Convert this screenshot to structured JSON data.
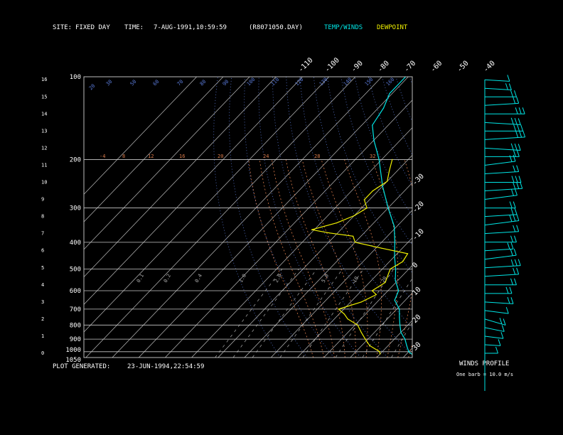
{
  "header": {
    "site_label": "SITE:",
    "site_value": "FIXED DAY",
    "time_label": "TIME:",
    "time_value": "7-AUG-1991,10:59:59",
    "file": "(R8071050.DAY)",
    "temp_legend": "TEMP/WINDS",
    "dewpoint_legend": "DEWPOINT"
  },
  "footer": {
    "generated_label": "PLOT GENERATED:",
    "generated_value": "23-JUN-1994,22:54:59"
  },
  "winds_panel": {
    "title": "WINDS PROFILE",
    "note": "One barb = 10.0 m/s"
  },
  "colors": {
    "temperature": "#00e5e5",
    "dewpoint": "#f0f000",
    "isobar": "#c8c8c8",
    "isotherm": "#bfbfbf",
    "dry_adiabat": "#5a7ad8",
    "moist_adiabat": "#d87a4a",
    "mixing_ratio": "#b0b0b0",
    "wind_barb": "#00e5e5"
  },
  "chart_data": {
    "type": "line",
    "title": "",
    "subtitle": "",
    "xlabel": "",
    "ylabel": "",
    "grid": true,
    "legend": "top-right",
    "pressure_ticks": [
      "100",
      "200",
      "300",
      "400",
      "500",
      "600",
      "700",
      "800",
      "900",
      "1000",
      "1050"
    ],
    "height_ticks": [
      "0",
      "1",
      "2",
      "3",
      "4",
      "5",
      "6",
      "7",
      "8",
      "9",
      "10",
      "11",
      "12",
      "13",
      "14",
      "15",
      "16"
    ],
    "isotherm_top_labels": [
      "-110",
      "-100",
      "-90",
      "-80",
      "-70",
      "-60",
      "-50",
      "-40"
    ],
    "isotherm_right_labels": [
      "-30",
      "-20",
      "-10",
      "0",
      "10",
      "20",
      "30"
    ],
    "dry_adiabat_labels": [
      "20",
      "30",
      "50",
      "60",
      "70",
      "80",
      "90",
      "100",
      "110",
      "120",
      "130",
      "140",
      "150",
      "160"
    ],
    "moist_adiabat_labels": [
      "-4",
      "8",
      "12",
      "16",
      "20",
      "24",
      "28",
      "32"
    ],
    "mixing_ratio_labels": [
      "0.1",
      "0.2",
      "0.4",
      "1.0",
      "2.0",
      "5.0",
      "10",
      "20"
    ],
    "series": [
      {
        "name": "TEMP/WINDS",
        "pressure_hpa": [
          1020,
          1000,
          950,
          900,
          850,
          800,
          750,
          700,
          650,
          600,
          550,
          500,
          450,
          400,
          350,
          300,
          250,
          200,
          170,
          150,
          130,
          115,
          100
        ],
        "temp_c": [
          32,
          30,
          27,
          24,
          20,
          17,
          14,
          11,
          6,
          4,
          -1,
          -5,
          -10,
          -15,
          -21,
          -30,
          -40,
          -51,
          -60,
          -66,
          -68,
          -71,
          -71
        ]
      },
      {
        "name": "DEWPOINT",
        "pressure_hpa": [
          1020,
          1000,
          950,
          900,
          850,
          800,
          760,
          730,
          700,
          660,
          620,
          600,
          560,
          520,
          500,
          470,
          440,
          420,
          400,
          380,
          370,
          360,
          340,
          320,
          300,
          280,
          260,
          240,
          220,
          200
        ],
        "temp_c": [
          20,
          19,
          13,
          9,
          5,
          1,
          -5,
          -8,
          -12,
          -6,
          -3,
          -6,
          -4,
          -6,
          -7,
          -5,
          -6,
          -18,
          -30,
          -33,
          -43,
          -51,
          -44,
          -40,
          -38,
          -42,
          -42,
          -40,
          -43,
          -46
        ]
      }
    ],
    "winds": {
      "heights_km": [
        0,
        0.5,
        1,
        1.5,
        2,
        2.5,
        3,
        3.5,
        4,
        4.5,
        5,
        5.5,
        6,
        6.5,
        7,
        7.5,
        8,
        8.5,
        9,
        9.5,
        10,
        10.5,
        11,
        11.5,
        12,
        12.5,
        13,
        13.5,
        14,
        14.5,
        15,
        15.5,
        16
      ],
      "direction_deg": [
        270,
        260,
        250,
        240,
        230,
        250,
        260,
        270,
        270,
        280,
        280,
        290,
        280,
        270,
        280,
        290,
        280,
        270,
        290,
        280,
        270,
        280,
        290,
        270,
        260,
        280,
        270,
        260,
        270,
        280,
        270,
        260,
        260
      ],
      "speed_ms": [
        5,
        8,
        12,
        15,
        20,
        18,
        22,
        20,
        25,
        28,
        30,
        27,
        22,
        25,
        28,
        30,
        26,
        24,
        28,
        32,
        30,
        28,
        26,
        28,
        30,
        35,
        32,
        30,
        34,
        28,
        25,
        20,
        18
      ]
    }
  }
}
